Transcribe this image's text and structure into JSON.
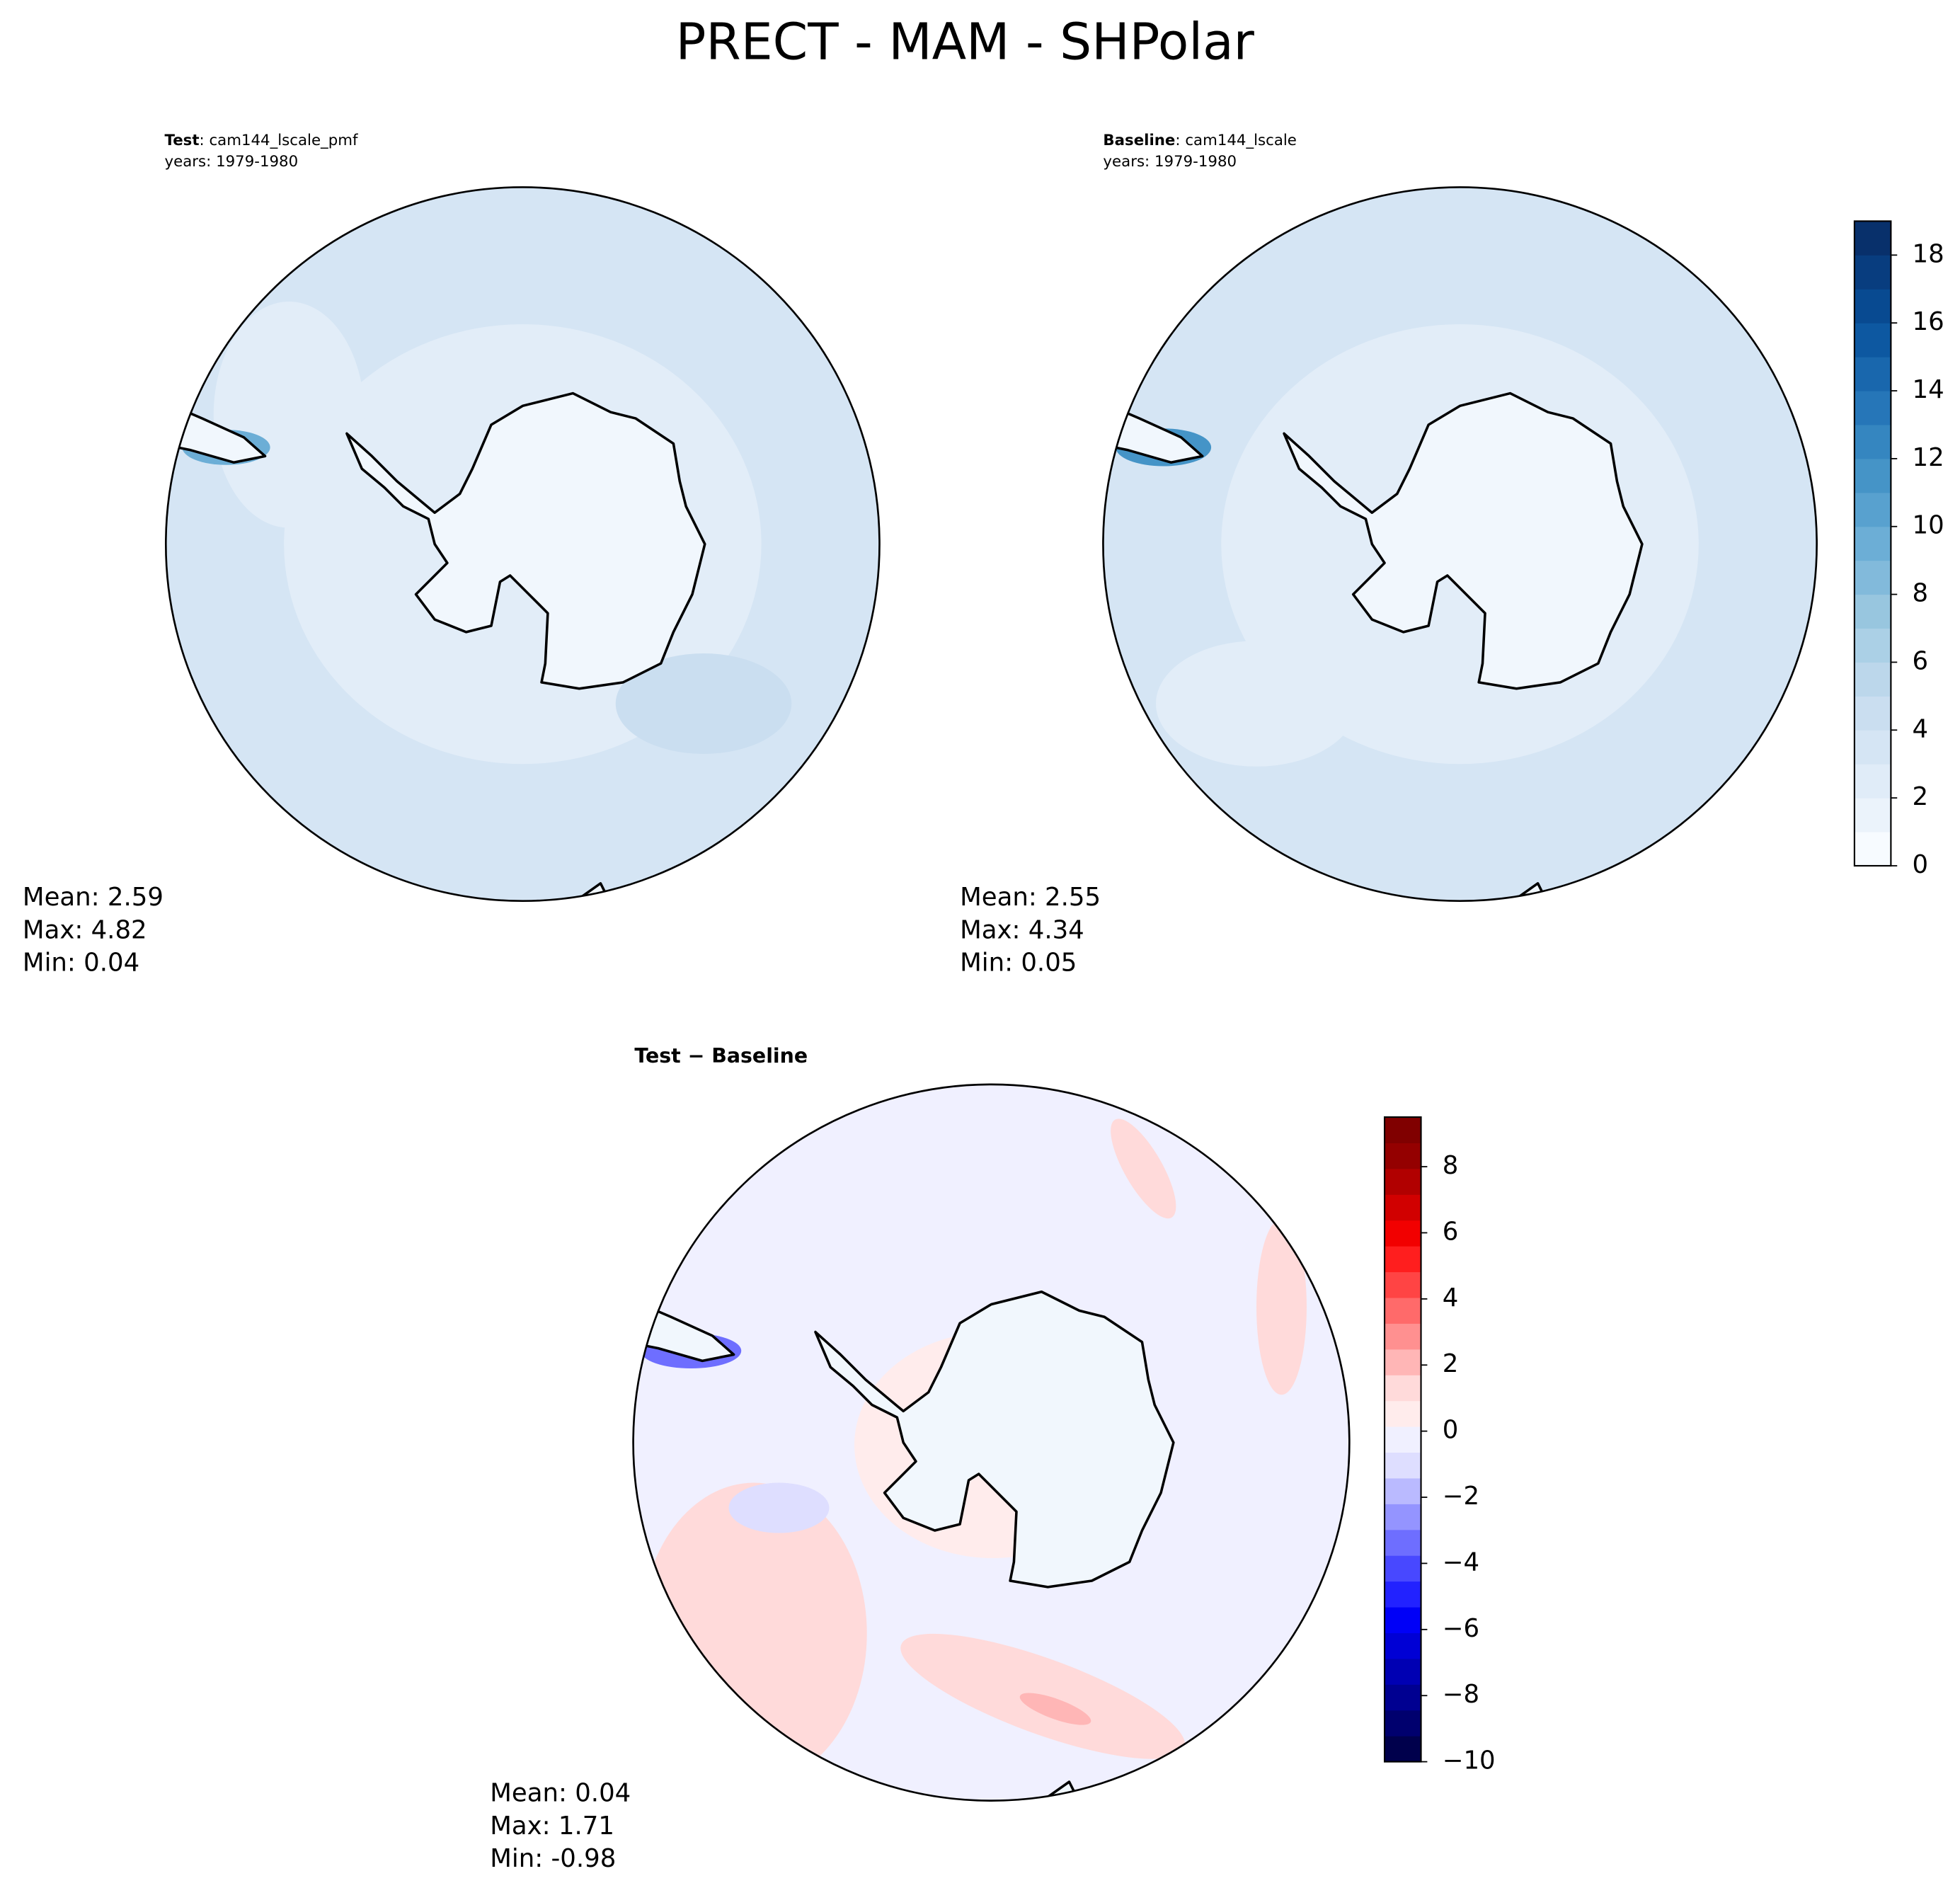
{
  "title": "PRECT - MAM - SHPolar",
  "panels": [
    {
      "label_bold": "Test",
      "label": ": cam144_lscale_pmf",
      "years": "years: 1979-1980",
      "stats": [
        "Mean:  2.59",
        "Max:  4.82",
        "Min:  0.04"
      ]
    },
    {
      "label_bold": "Baseline",
      "label": ": cam144_lscale",
      "years": "years: 1979-1980",
      "stats": [
        "Mean:  2.55",
        "Max:  4.34",
        "Min:  0.05"
      ]
    },
    {
      "label_bold": "Test − Baseline",
      "stats": [
        "Mean:  0.04",
        "Max:  1.71",
        "Min: -0.98"
      ]
    }
  ],
  "colorbars": [
    {
      "lim": [
        0,
        19
      ],
      "ticks": [
        0,
        2,
        4,
        6,
        8,
        10,
        12,
        14,
        16,
        18
      ],
      "colors": [
        "#f7fbff",
        "#ebf3fb",
        "#e0ecf8",
        "#d5e5f4",
        "#cadef0",
        "#bcd7eb",
        "#abd0e6",
        "#98c6df",
        "#82badb",
        "#6caed6",
        "#58a1cf",
        "#4594c7",
        "#3586c0",
        "#2676b8",
        "#1967ad",
        "#0d58a1",
        "#084a91",
        "#083d7f",
        "#08306b"
      ]
    },
    {
      "lim": [
        -10,
        9.5
      ],
      "ticks": [
        {
          "value": -10,
          "label": "−10"
        },
        {
          "value": -8,
          "label": "−8"
        },
        {
          "value": -6,
          "label": "−6"
        },
        {
          "value": -4,
          "label": "−4"
        },
        {
          "value": -2,
          "label": "−2"
        },
        0,
        2,
        4,
        6,
        8
      ],
      "colors": [
        "#00004c",
        "#00006e",
        "#000091",
        "#0000b3",
        "#0000d5",
        "#0000f7",
        "#2222ff",
        "#4848ff",
        "#6e6eff",
        "#9494ff",
        "#babaff",
        "#dedeff",
        "#f0f0ff",
        "#ffecec",
        "#ffdada",
        "#ffb6b6",
        "#ff9090",
        "#ff6a6a",
        "#ff4444",
        "#ff1e1e",
        "#f20000",
        "#d10000",
        "#b10000",
        "#940000",
        "#800000"
      ]
    }
  ]
}
